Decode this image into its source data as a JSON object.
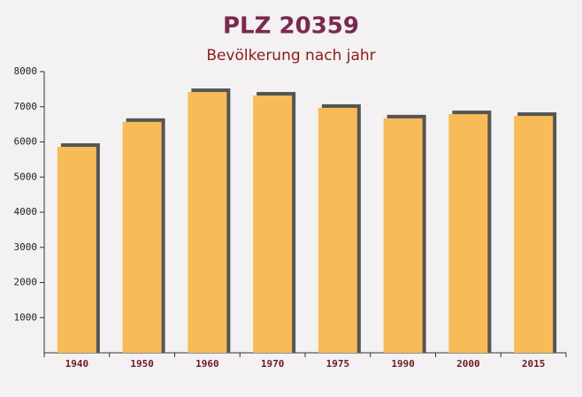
{
  "chart_data": {
    "type": "bar",
    "title": "PLZ 20359",
    "subtitle": "Bevölkerung nach jahr",
    "categories": [
      "1940",
      "1950",
      "1960",
      "1970",
      "1975",
      "1990",
      "2000",
      "2015"
    ],
    "values": [
      5860,
      6570,
      7420,
      7320,
      6970,
      6670,
      6790,
      6740
    ],
    "color": "#f7bb57",
    "ylim": [
      0,
      8000
    ],
    "yticks": [
      1000,
      2000,
      3000,
      4000,
      5000,
      6000,
      7000,
      8000
    ],
    "grid": false
  }
}
